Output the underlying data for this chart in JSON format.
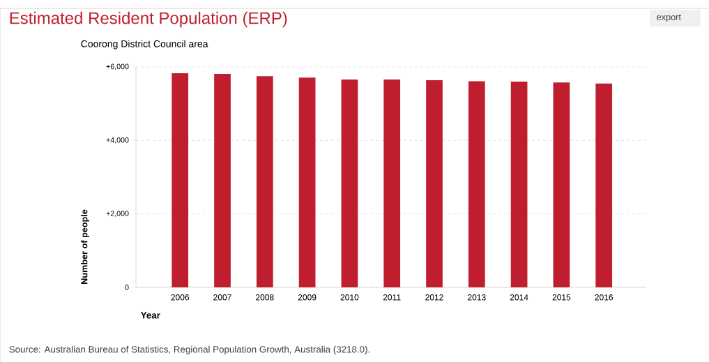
{
  "chart_data": {
    "type": "bar",
    "title": "Estimated Resident Population (ERP)",
    "subtitle": "Coorong District Council area",
    "xlabel": "Year",
    "ylabel": "Number of people",
    "categories": [
      "2006",
      "2007",
      "2008",
      "2009",
      "2010",
      "2011",
      "2012",
      "2013",
      "2014",
      "2015",
      "2016"
    ],
    "values": [
      5830,
      5810,
      5750,
      5710,
      5660,
      5660,
      5640,
      5610,
      5600,
      5580,
      5550
    ],
    "color": "#be1e2d",
    "ylim": [
      0,
      6000
    ],
    "yticks": [
      0,
      {
        "value": 2000,
        "label": "+2,000"
      },
      {
        "value": 4000,
        "label": "+4,000"
      },
      {
        "value": 6000,
        "label": "+6,000"
      }
    ],
    "grid": "y",
    "annotations": [
      "Source: Australian Bureau of Statistics, Regional Population Growth, Australia (3218.0).",
      "export"
    ]
  }
}
